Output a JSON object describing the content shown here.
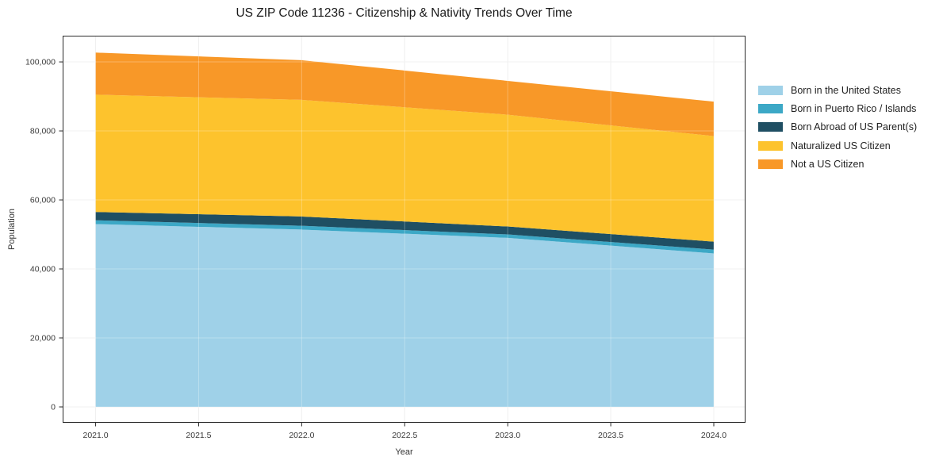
{
  "page": {
    "background": "#ffffff",
    "spine_color": "#2a2a2a",
    "grid_color": "#ebebeb",
    "tick_label_color": "#3a3a3a"
  },
  "chart_data": {
    "type": "area",
    "stacked": true,
    "title": "US ZIP Code 11236 - Citizenship & Nativity Trends Over Time",
    "xlabel": "Year",
    "ylabel": "Population",
    "x": [
      2021.0,
      2022.0,
      2023.0,
      2024.0
    ],
    "series": [
      {
        "name": "Born in the United States",
        "color": "#9FD1E8",
        "values": [
          53000,
          51400,
          49000,
          44500
        ]
      },
      {
        "name": "Born in Puerto Rico / Islands",
        "color": "#3CA8C6",
        "values": [
          1100,
          1100,
          1000,
          1100
        ]
      },
      {
        "name": "Born Abroad of US Parent(s)",
        "color": "#1F4F63",
        "values": [
          2400,
          2700,
          2300,
          2300
        ]
      },
      {
        "name": "Naturalized US Citizen",
        "color": "#FDC32D",
        "values": [
          34000,
          33800,
          32400,
          30600
        ]
      },
      {
        "name": "Not a US Citizen",
        "color": "#F89828",
        "values": [
          12200,
          11500,
          9800,
          10000
        ]
      }
    ],
    "stacked_totals": [
      102700,
      100500,
      94500,
      88500
    ],
    "xticks": {
      "values": [
        2021.0,
        2021.5,
        2022.0,
        2022.5,
        2023.0,
        2023.5,
        2024.0
      ],
      "labels": [
        "2021.0",
        "2021.5",
        "2022.0",
        "2022.5",
        "2023.0",
        "2023.5",
        "2024.0"
      ]
    },
    "yticks": {
      "values": [
        0,
        20000,
        40000,
        60000,
        80000,
        100000
      ],
      "labels": [
        "0",
        "20,000",
        "40,000",
        "60,000",
        "80,000",
        "100,000"
      ]
    },
    "xlim": [
      2020.84,
      2024.154
    ],
    "ylim": [
      -4600,
      107600
    ],
    "grid": true,
    "legend_position": "right"
  }
}
